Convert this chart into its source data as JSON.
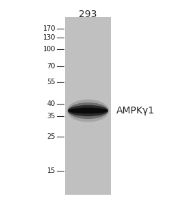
{
  "title": "293",
  "title_fontsize": 10,
  "background_color": "#ffffff",
  "blot_bg_color": "#c0c0c0",
  "band_color_center": "#0a0a0a",
  "label_text": "AMPKγ1",
  "label_fontsize": 10,
  "marker_labels": [
    "170",
    "130",
    "100",
    "70",
    "55",
    "40",
    "35",
    "25",
    "15"
  ],
  "marker_fontsize": 7
}
